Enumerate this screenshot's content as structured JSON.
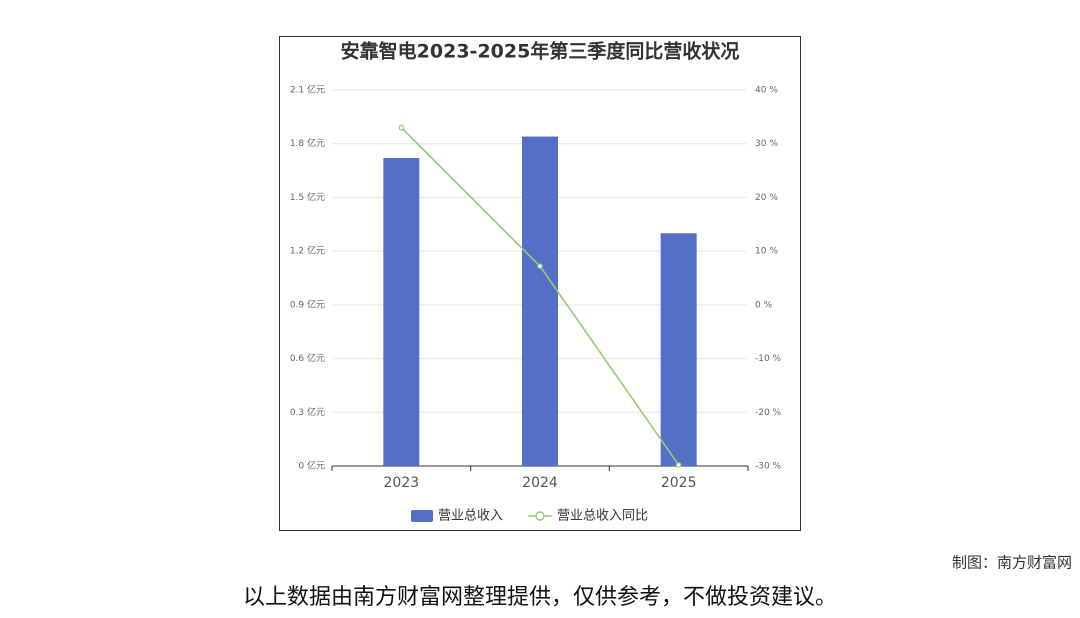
{
  "chart_data": {
    "type": "bar",
    "title": "安靠智电2023-2025年第三季度同比营收状况",
    "categories": [
      "2023",
      "2024",
      "2025"
    ],
    "series": [
      {
        "name": "营业总收入",
        "color": "#5470c6",
        "values": [
          1.72,
          1.84,
          1.3
        ]
      },
      {
        "name": "营业总收入同比",
        "color": "#91cc75",
        "axis": "y2",
        "values": [
          33,
          7.2,
          -29.8
        ]
      }
    ],
    "ylim": [
      0,
      2.1
    ],
    "yticks": [
      {
        "value": 0,
        "label": "0 亿元"
      },
      {
        "value": 0.3,
        "label": "0.3 亿元"
      },
      {
        "value": 0.6,
        "label": "0.6 亿元"
      },
      {
        "value": 0.9,
        "label": "0.9 亿元"
      },
      {
        "value": 1.2,
        "label": "1.2 亿元"
      },
      {
        "value": 1.5,
        "label": "1.5 亿元"
      },
      {
        "value": 1.8,
        "label": "1.8 亿元"
      },
      {
        "value": 2.1,
        "label": "2.1 亿元"
      }
    ],
    "y2lim": [
      -30,
      40
    ],
    "y2ticks": [
      {
        "value": -30,
        "label": "-30 %"
      },
      {
        "value": -20,
        "label": "-20 %"
      },
      {
        "value": -10,
        "label": "-10 %"
      },
      {
        "value": 0,
        "label": "0 %"
      },
      {
        "value": 10,
        "label": "10 %"
      },
      {
        "value": 20,
        "label": "20 %"
      },
      {
        "value": 30,
        "label": "30 %"
      },
      {
        "value": 40,
        "label": "40 %"
      }
    ],
    "grid": true,
    "legend": "bottom"
  },
  "credit": "制图：南方财富网",
  "disclaimer": "以上数据由南方财富网整理提供，仅供参考，不做投资建议。"
}
